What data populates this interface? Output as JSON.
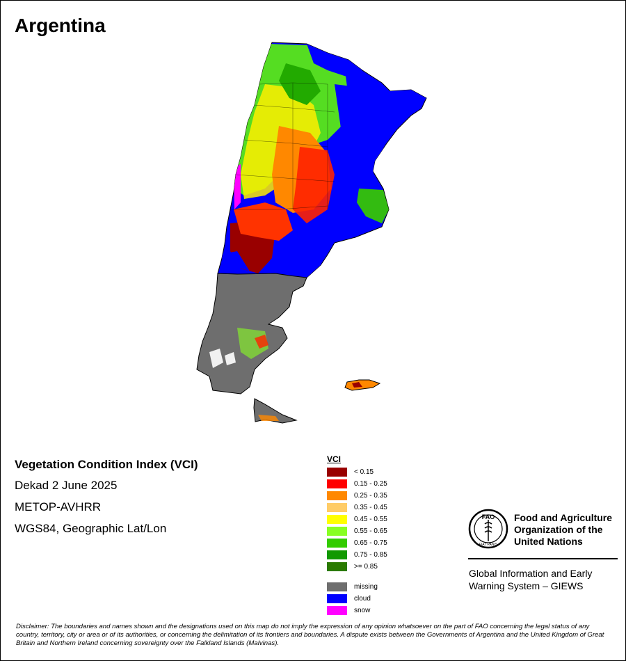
{
  "title": "Argentina",
  "info": {
    "product": "Vegetation Condition Index (VCI)",
    "period": "Dekad 2 June 2025",
    "sensor": "METOP-AVHRR",
    "projection": "WGS84, Geographic Lat/Lon"
  },
  "legend": {
    "title": "VCI",
    "classes": [
      {
        "label": "< 0.15",
        "color": "#990000"
      },
      {
        "label": "0.15 - 0.25",
        "color": "#ff0000"
      },
      {
        "label": "0.25 - 0.35",
        "color": "#ff8800"
      },
      {
        "label": "0.35 - 0.45",
        "color": "#ffcc66"
      },
      {
        "label": "0.45 - 0.55",
        "color": "#ffff00"
      },
      {
        "label": "0.55 - 0.65",
        "color": "#88ff22"
      },
      {
        "label": "0.65 - 0.75",
        "color": "#33cc00"
      },
      {
        "label": "0.75 - 0.85",
        "color": "#119900"
      },
      {
        "label": ">= 0.85",
        "color": "#2a7a00"
      }
    ],
    "special": [
      {
        "label": "missing",
        "color": "#6e6e6e"
      },
      {
        "label": "cloud",
        "color": "#0000ff"
      },
      {
        "label": "snow",
        "color": "#ff00ff"
      }
    ]
  },
  "fao": {
    "logo_text": "FAO",
    "logo_motto": "FIAT PANIS",
    "name_line1": "Food and Agriculture",
    "name_line2": "Organization of the",
    "name_line3": "United Nations",
    "giews_line1": "Global Information and Early",
    "giews_line2": "Warning System – GIEWS"
  },
  "disclaimer": "Disclaimer: The boundaries and names shown and the designations used on this map do not imply the expression of any opinion whatsoever on the part of FAO concerning the legal status of any country, territory, city or area or of its authorities, or concerning the delimitation of its frontiers and boundaries. A dispute exists between the Governments of Argentina and the United Kingdom of Great Britain and Northern Ireland concerning sovereignty over the Falkland Islands (Malvinas)."
}
